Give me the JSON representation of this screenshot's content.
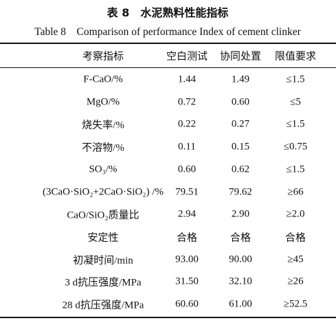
{
  "header": {
    "title": "表 8　水泥熟料性能指标",
    "subtitle": "Table 8　Comparison of performance Index of cement clinker"
  },
  "table": {
    "header": [
      "考察指标",
      "空白测试",
      "协同处置",
      "限值要求"
    ],
    "rows": [
      [
        "F-CaO/%",
        "1.44",
        "1.49",
        "≤1.5"
      ],
      [
        "MgO/%",
        "0.72",
        "0.60",
        "≤5"
      ],
      [
        "烧失率/%",
        "0.22",
        "0.27",
        "≤1.5"
      ],
      [
        "不溶物/%",
        "0.11",
        "0.15",
        "≤0.75"
      ],
      [
        "SO₃/%",
        "0.60",
        "0.62",
        "≤1.5"
      ],
      [
        "(3CaO·SiO₂+2CaO·SiO₂) /%",
        "79.51",
        "79.62",
        "≥66"
      ],
      [
        "CaO/SiO₂质量比",
        "2.94",
        "2.90",
        "≥2.0"
      ],
      [
        "安定性",
        "合格",
        "合格",
        "合格"
      ],
      [
        "初凝时间/min",
        "93.00",
        "90.00",
        "≥45"
      ],
      [
        "3 d抗压强度/MPa",
        "31.50",
        "32.10",
        "≥26"
      ],
      [
        "28 d抗压强度/MPa",
        "60.60",
        "61.00",
        "≥52.5"
      ]
    ]
  }
}
